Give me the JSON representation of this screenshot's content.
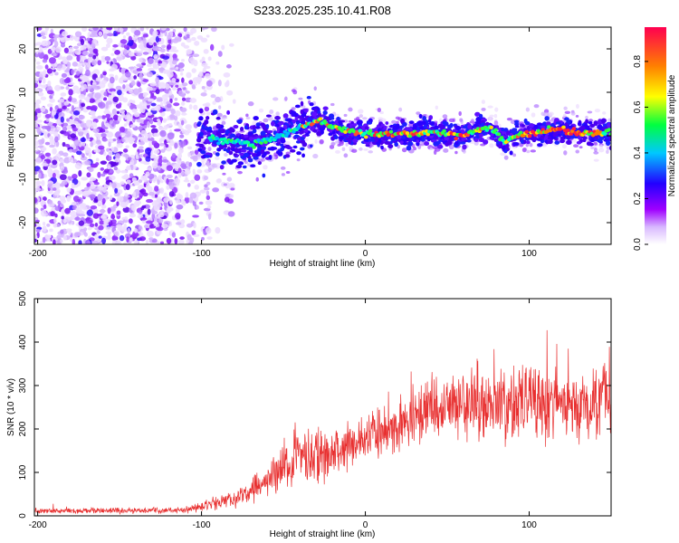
{
  "title": "S233.2025.235.10.41.R08",
  "chart_data": [
    {
      "type": "heatmap",
      "title": "S233.2025.235.10.41.R08",
      "xlabel": "Height of straight line (km)",
      "ylabel": "Frequency (Hz)",
      "xlim": [
        -202,
        150
      ],
      "ylim": [
        -25,
        25
      ],
      "x_ticks": [
        "-200",
        "-100",
        "0",
        "100"
      ],
      "x_tick_values": [
        -200,
        -100,
        0,
        100
      ],
      "y_ticks": [
        "20",
        "10",
        "0",
        "-10",
        "-20"
      ],
      "y_tick_values": [
        20,
        10,
        0,
        -10,
        -20
      ],
      "colorbar": {
        "label": "Normalized spectral amplitude",
        "range": [
          0,
          0.95
        ],
        "ticks": [
          "0.0",
          "0.2",
          "0.4",
          "0.6",
          "0.8"
        ],
        "tick_values": [
          0,
          0.2,
          0.4,
          0.6,
          0.8
        ],
        "colors": [
          "#ffffff",
          "#a000ff",
          "#2200ff",
          "#00c8ff",
          "#00ff40",
          "#ffff00",
          "#ff8000",
          "#ff0050"
        ]
      },
      "ridge": {
        "name": "dominant frequency track",
        "x": [
          -100,
          -90,
          -80,
          -70,
          -60,
          -50,
          -40,
          -35,
          -30,
          -25,
          -20,
          -10,
          0,
          10,
          20,
          30,
          40,
          50,
          60,
          70,
          75,
          80,
          85,
          90,
          100,
          110,
          120,
          130,
          140,
          150
        ],
        "y": [
          0,
          -1,
          -1.5,
          -2,
          -1,
          0,
          2,
          3,
          3.5,
          3,
          2,
          1,
          0.5,
          0.5,
          0.5,
          0.5,
          1,
          0.5,
          0,
          1.5,
          2,
          1,
          -1.5,
          0,
          0.5,
          1,
          1.5,
          0.5,
          0.5,
          1
        ]
      }
    },
    {
      "type": "line",
      "xlabel": "Height of straight line (km)",
      "ylabel": "SNR (10 * v/v)",
      "xlim": [
        -202,
        150
      ],
      "ylim": [
        0,
        500
      ],
      "x_ticks": [
        "-200",
        "-100",
        "0",
        "100"
      ],
      "x_tick_values": [
        -200,
        -100,
        0,
        100
      ],
      "y_ticks": [
        "0",
        "100",
        "200",
        "300",
        "400",
        "500"
      ],
      "y_tick_values": [
        0,
        100,
        200,
        300,
        400,
        500
      ],
      "color": "#e83030",
      "series": [
        {
          "name": "SNR",
          "x": [
            -200,
            -150,
            -110,
            -100,
            -90,
            -80,
            -70,
            -60,
            -50,
            -40,
            -30,
            -20,
            -10,
            0,
            10,
            20,
            30,
            40,
            50,
            60,
            70,
            80,
            90,
            100,
            110,
            120,
            130,
            140,
            150
          ],
          "mean": [
            12,
            12,
            13,
            22,
            30,
            40,
            55,
            75,
            120,
            150,
            135,
            140,
            160,
            180,
            190,
            205,
            230,
            250,
            255,
            260,
            265,
            260,
            255,
            270,
            260,
            265,
            255,
            260,
            265
          ],
          "spread": [
            8,
            8,
            8,
            15,
            18,
            25,
            35,
            50,
            70,
            80,
            80,
            70,
            70,
            65,
            70,
            75,
            90,
            90,
            90,
            95,
            100,
            100,
            100,
            110,
            110,
            100,
            95,
            95,
            90
          ]
        }
      ]
    }
  ]
}
